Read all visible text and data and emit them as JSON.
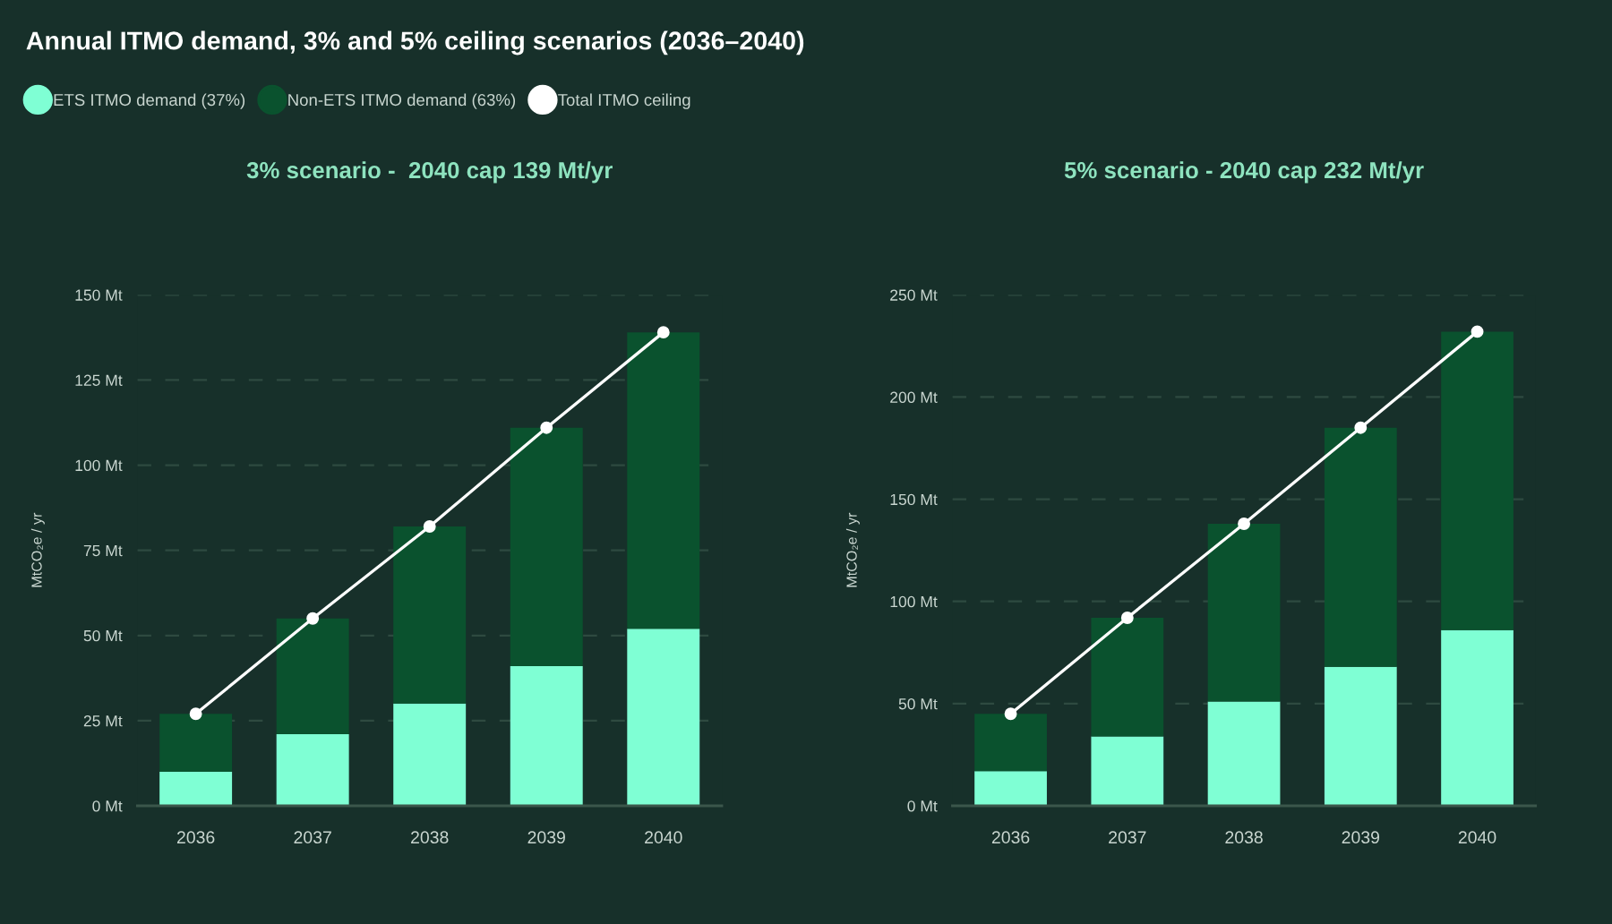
{
  "chart_data": [
    {
      "type": "bar",
      "title": "Annual ITMO demand, 3% and 5% ceiling scenarios (2036–2040)",
      "subtitle": "3% scenario -  2040 cap 139 Mt/yr",
      "ylabel": "MtCO₂e / yr",
      "categories": [
        "2036",
        "2037",
        "2038",
        "2039",
        "2040"
      ],
      "stacked": true,
      "series": [
        {
          "name": "ETS ITMO demand (37%)",
          "color": "#7fffd4",
          "values": [
            10,
            21,
            30,
            41,
            52
          ]
        },
        {
          "name": "Non-ETS ITMO demand (63%)",
          "color": "#0a522e",
          "values": [
            17,
            34,
            52,
            70,
            87
          ]
        },
        {
          "name": "Total ITMO ceiling",
          "type": "line",
          "color": "#ffffff",
          "marker": "circle",
          "values": [
            27,
            55,
            82,
            111,
            139
          ]
        }
      ],
      "ylim": [
        0,
        150
      ],
      "yticks": [
        {
          "value": 0,
          "label": "0 Mt"
        },
        {
          "value": 25,
          "label": "25 Mt"
        },
        {
          "value": 50,
          "label": "50 Mt"
        },
        {
          "value": 75,
          "label": "75 Mt"
        },
        {
          "value": 100,
          "label": "100 Mt"
        },
        {
          "value": 125,
          "label": "125 Mt"
        },
        {
          "value": 150,
          "label": "150 Mt"
        }
      ],
      "grid": "y",
      "legend": "top left"
    },
    {
      "type": "bar",
      "subtitle": "5% scenario - 2040 cap 232 Mt/yr",
      "ylabel": "MtCO₂e / yr",
      "categories": [
        "2036",
        "2037",
        "2038",
        "2039",
        "2040"
      ],
      "stacked": true,
      "series": [
        {
          "color": "#7fffd4",
          "values": [
            17,
            34,
            51,
            68,
            86
          ]
        },
        {
          "color": "#0a522e",
          "values": [
            28,
            58,
            87,
            117,
            146
          ]
        },
        {
          "type": "line",
          "color": "#ffffff",
          "marker": "circle",
          "values": [
            45,
            92,
            138,
            185,
            232
          ]
        }
      ],
      "ylim": [
        0,
        250
      ],
      "yticks": [
        {
          "value": 0,
          "label": "0 Mt"
        },
        {
          "value": 50,
          "label": "50 Mt"
        },
        {
          "value": 100,
          "label": "100 Mt"
        },
        {
          "value": 150,
          "label": "150 Mt"
        },
        {
          "value": 200,
          "label": "200 Mt"
        },
        {
          "value": 250,
          "label": "250 Mt"
        }
      ],
      "grid": "y"
    }
  ]
}
